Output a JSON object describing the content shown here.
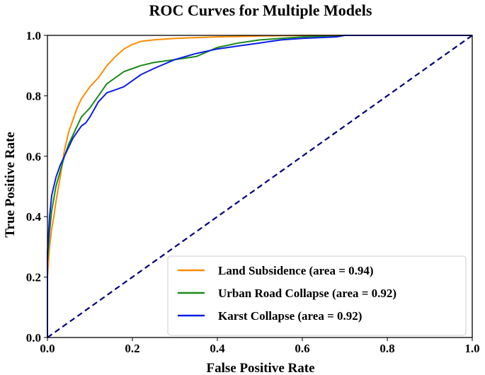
{
  "chart_data": {
    "type": "line",
    "title": "ROC Curves for Multiple Models",
    "xlabel": "False Positive Rate",
    "ylabel": "True Positive Rate",
    "xlim": [
      0.0,
      1.0
    ],
    "ylim": [
      0.0,
      1.0
    ],
    "xticks": [
      "0.0",
      "0.2",
      "0.4",
      "0.6",
      "0.8",
      "1.0"
    ],
    "yticks": [
      "0.0",
      "0.2",
      "0.4",
      "0.6",
      "0.8",
      "1.0"
    ],
    "grid": false,
    "legend_position": "lower-right",
    "series": [
      {
        "name": "Land Subsidence (area = 0.94)",
        "color": "#ff8c00",
        "style": "solid",
        "x": [
          0.0,
          0.0,
          0.005,
          0.01,
          0.015,
          0.02,
          0.03,
          0.04,
          0.05,
          0.06,
          0.07,
          0.08,
          0.09,
          0.1,
          0.12,
          0.14,
          0.16,
          0.18,
          0.2,
          0.22,
          0.25,
          0.3,
          0.4,
          0.5,
          0.6,
          1.0
        ],
        "y": [
          0.0,
          0.2,
          0.3,
          0.36,
          0.4,
          0.45,
          0.53,
          0.62,
          0.68,
          0.72,
          0.76,
          0.79,
          0.81,
          0.83,
          0.86,
          0.9,
          0.93,
          0.955,
          0.97,
          0.98,
          0.985,
          0.99,
          0.995,
          0.998,
          1.0,
          1.0
        ]
      },
      {
        "name": "Urban Road Collapse (area = 0.92)",
        "color": "#1a8a1a",
        "style": "solid",
        "x": [
          0.0,
          0.0,
          0.005,
          0.01,
          0.02,
          0.03,
          0.04,
          0.05,
          0.06,
          0.07,
          0.08,
          0.1,
          0.12,
          0.14,
          0.16,
          0.18,
          0.2,
          0.22,
          0.25,
          0.3,
          0.35,
          0.4,
          0.45,
          0.5,
          0.6,
          0.7,
          1.0
        ],
        "y": [
          0.0,
          0.25,
          0.35,
          0.42,
          0.5,
          0.55,
          0.6,
          0.64,
          0.67,
          0.7,
          0.73,
          0.76,
          0.8,
          0.84,
          0.86,
          0.88,
          0.89,
          0.9,
          0.91,
          0.92,
          0.93,
          0.96,
          0.975,
          0.985,
          0.995,
          1.0,
          1.0
        ]
      },
      {
        "name": "Karst Collapse (area = 0.92)",
        "color": "#0a1ee6",
        "style": "solid",
        "x": [
          0.0,
          0.0,
          0.005,
          0.01,
          0.02,
          0.03,
          0.04,
          0.05,
          0.06,
          0.07,
          0.08,
          0.09,
          0.1,
          0.12,
          0.14,
          0.16,
          0.18,
          0.2,
          0.22,
          0.25,
          0.3,
          0.35,
          0.4,
          0.45,
          0.5,
          0.55,
          0.6,
          0.68,
          0.7,
          1.0
        ],
        "y": [
          0.0,
          0.28,
          0.4,
          0.47,
          0.53,
          0.57,
          0.6,
          0.63,
          0.66,
          0.68,
          0.7,
          0.71,
          0.73,
          0.78,
          0.81,
          0.82,
          0.83,
          0.85,
          0.87,
          0.89,
          0.92,
          0.94,
          0.955,
          0.965,
          0.975,
          0.985,
          0.99,
          0.995,
          1.0,
          1.0
        ]
      },
      {
        "name": "chance",
        "color": "#000080",
        "style": "dashed",
        "legend": false,
        "x": [
          0.0,
          1.0
        ],
        "y": [
          0.0,
          1.0
        ]
      }
    ]
  }
}
